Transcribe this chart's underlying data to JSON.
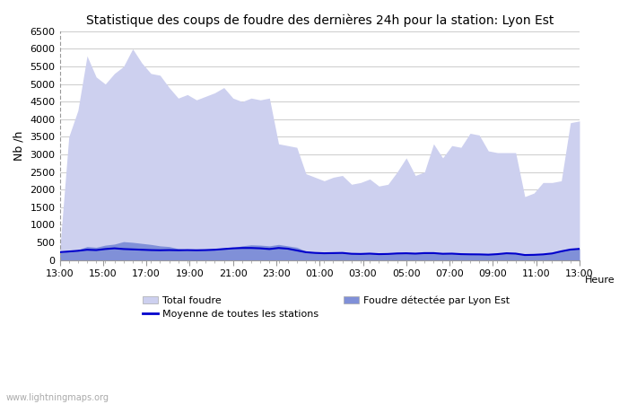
{
  "title": "Statistique des coups de foudre des dernières 24h pour la station: Lyon Est",
  "xlabel": "Heure",
  "ylabel": "Nb /h",
  "ylim": [
    0,
    6500
  ],
  "yticks": [
    0,
    500,
    1000,
    1500,
    2000,
    2500,
    3000,
    3500,
    4000,
    4500,
    5000,
    5500,
    6000,
    6500
  ],
  "x_labels": [
    "13:00",
    "15:00",
    "17:00",
    "19:00",
    "21:00",
    "23:00",
    "01:00",
    "03:00",
    "05:00",
    "07:00",
    "09:00",
    "11:00",
    "13:00"
  ],
  "watermark": "www.lightningmaps.org",
  "color_total": "#cdd0ef",
  "color_local": "#8090d8",
  "color_mean": "#0000cc",
  "total_foudre": [
    250,
    3500,
    4250,
    5800,
    5200,
    5000,
    5300,
    5500,
    6000,
    5600,
    5300,
    5250,
    4900,
    4600,
    4700,
    4550,
    4650,
    4750,
    4900,
    4600,
    4500,
    4600,
    4550,
    4600,
    3300,
    3250,
    3200,
    2450,
    2350,
    2250,
    2350,
    2400,
    2150,
    2200,
    2300,
    2100,
    2150,
    2500,
    2900,
    2400,
    2500,
    3300,
    2900,
    3250,
    3200,
    3600,
    3550,
    3100,
    3050,
    3050,
    3050,
    1800,
    1900,
    2200,
    2200,
    2250,
    3900,
    3950
  ],
  "local_foudre": [
    200,
    250,
    290,
    380,
    360,
    420,
    450,
    520,
    500,
    470,
    440,
    400,
    380,
    320,
    300,
    290,
    310,
    320,
    340,
    350,
    400,
    430,
    420,
    400,
    440,
    400,
    360,
    250,
    220,
    195,
    200,
    210,
    180,
    175,
    190,
    170,
    175,
    195,
    200,
    190,
    200,
    200,
    180,
    185,
    170,
    165,
    160,
    155,
    170,
    200,
    190,
    145,
    155,
    165,
    190,
    260,
    310,
    330
  ],
  "mean_foudre": [
    220,
    240,
    260,
    290,
    280,
    310,
    330,
    310,
    300,
    290,
    280,
    275,
    280,
    275,
    280,
    275,
    280,
    290,
    310,
    330,
    340,
    340,
    330,
    310,
    340,
    320,
    270,
    220,
    200,
    190,
    195,
    200,
    175,
    170,
    180,
    165,
    170,
    185,
    190,
    180,
    195,
    195,
    175,
    180,
    165,
    160,
    158,
    150,
    165,
    190,
    180,
    140,
    145,
    158,
    185,
    245,
    295,
    315
  ]
}
